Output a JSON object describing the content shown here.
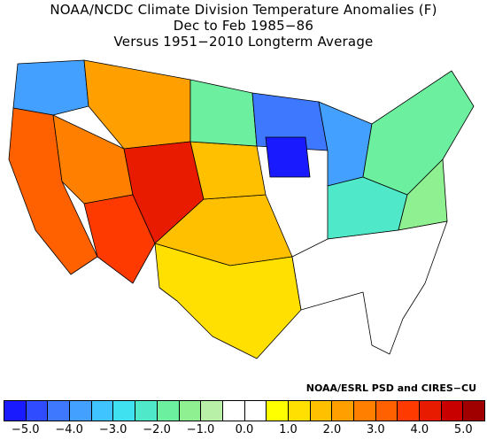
{
  "title": {
    "line1": "NOAA/NCDC Climate Division Temperature Anomalies (F)",
    "line2": "Dec to Feb 1985−86",
    "line3": "Versus 1951−2010 Longterm Average"
  },
  "credit": "NOAA/ESRL PSD and CIRES−CU",
  "legend": {
    "colors": [
      "#1a1aff",
      "#2f4cff",
      "#3d78ff",
      "#43a0ff",
      "#3fc4ff",
      "#3fe0f0",
      "#4fe8c8",
      "#6cf0a0",
      "#8ef090",
      "#b8f0a8",
      "#ffffff",
      "#ffffff",
      "#ffff00",
      "#ffe000",
      "#ffc000",
      "#ffa000",
      "#ff8000",
      "#ff6000",
      "#ff3a00",
      "#e81a00",
      "#c80000",
      "#a00000"
    ],
    "tick_labels": [
      "−5.0",
      "−4.0",
      "−3.0",
      "−2.0",
      "−1.0",
      "0.0",
      "1.0",
      "2.0",
      "3.0",
      "4.0",
      "5.0"
    ]
  },
  "map_regions": [
    {
      "name": "pacific-northwest",
      "color": "#43a0ff"
    },
    {
      "name": "northern-rockies",
      "color": "#ffa000"
    },
    {
      "name": "california",
      "color": "#ff6000"
    },
    {
      "name": "great-basin",
      "color": "#ff8000"
    },
    {
      "name": "southwest",
      "color": "#ff3a00"
    },
    {
      "name": "four-corners",
      "color": "#e81a00"
    },
    {
      "name": "southern-plains",
      "color": "#ffc000"
    },
    {
      "name": "texas",
      "color": "#ffe000"
    },
    {
      "name": "central-plains",
      "color": "#ffc000"
    },
    {
      "name": "northern-plains",
      "color": "#6cf0a0"
    },
    {
      "name": "upper-midwest",
      "color": "#3d78ff"
    },
    {
      "name": "iowa-core",
      "color": "#1a1aff"
    },
    {
      "name": "great-lakes",
      "color": "#43a0ff"
    },
    {
      "name": "ohio-valley",
      "color": "#4fe8c8"
    },
    {
      "name": "northeast",
      "color": "#6cf0a0"
    },
    {
      "name": "mid-atlantic",
      "color": "#8ef090"
    },
    {
      "name": "southeast",
      "color": "#ffffff"
    }
  ]
}
